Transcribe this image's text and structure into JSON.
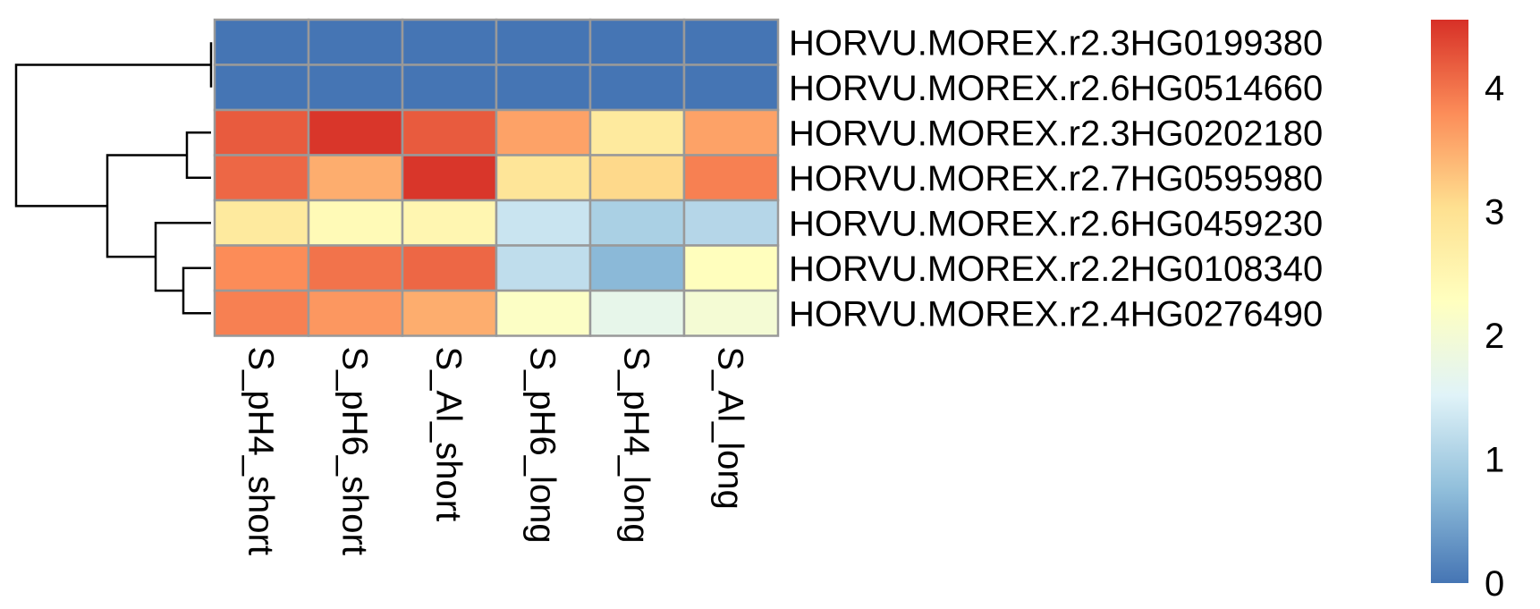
{
  "chart_data": {
    "type": "heatmap",
    "columns": [
      "S_pH4_short",
      "S_pH6_short",
      "S_Al_short",
      "S_pH6_long",
      "S_pH4_long",
      "S_Al_long"
    ],
    "rows": [
      "HORVU.MOREX.r2.3HG0199380",
      "HORVU.MOREX.r2.6HG0514660",
      "HORVU.MOREX.r2.3HG0202180",
      "HORVU.MOREX.r2.7HG0595980",
      "HORVU.MOREX.r2.6HG0459230",
      "HORVU.MOREX.r2.2HG0108340",
      "HORVU.MOREX.r2.4HG0276490"
    ],
    "values": [
      [
        0,
        0,
        0,
        0,
        0,
        0
      ],
      [
        0,
        0,
        0,
        0,
        0,
        0
      ],
      [
        4.2,
        4.5,
        4.2,
        3.6,
        2.8,
        3.6
      ],
      [
        4.1,
        3.5,
        4.5,
        2.9,
        3.1,
        3.9
      ],
      [
        2.8,
        2.4,
        2.5,
        1.3,
        1.0,
        1.1
      ],
      [
        3.8,
        4.0,
        4.1,
        1.2,
        0.7,
        2.3
      ],
      [
        3.9,
        3.7,
        3.5,
        2.2,
        1.7,
        2.0
      ]
    ],
    "legend": {
      "ticks": [
        0,
        1,
        2,
        3,
        4
      ],
      "min": 0,
      "max": 4.55,
      "colors": [
        "#4575B4",
        "#91BFDB",
        "#E0F3F8",
        "#FFFFBF",
        "#FEE090",
        "#FC8D59",
        "#D73027"
      ]
    },
    "row_dendrogram": "[[r1,r2],[[r3,r4],[r5,[r6,r7]]]]",
    "cell_border_color": "#999999"
  }
}
